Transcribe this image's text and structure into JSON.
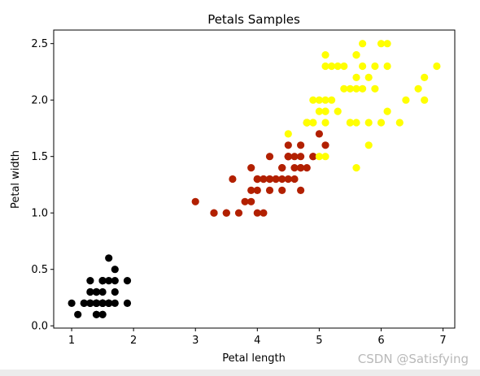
{
  "chart_data": {
    "type": "scatter",
    "title": "Petals Samples",
    "xlabel": "Petal length",
    "ylabel": "Petal width",
    "xlim": [
      0.71,
      7.19
    ],
    "ylim": [
      -0.02,
      2.62
    ],
    "xticks": [
      1,
      2,
      3,
      4,
      5,
      6,
      7
    ],
    "yticks": [
      0.0,
      0.5,
      1.0,
      1.5,
      2.0,
      2.5
    ],
    "ytick_labels": [
      "0.0",
      "0.5",
      "1.0",
      "1.5",
      "2.0",
      "2.5"
    ],
    "grid": false,
    "legend": false,
    "series": [
      {
        "color": "#000000",
        "x": [
          1.4,
          1.4,
          1.3,
          1.5,
          1.4,
          1.7,
          1.4,
          1.5,
          1.4,
          1.5,
          1.5,
          1.6,
          1.4,
          1.1,
          1.2,
          1.5,
          1.3,
          1.4,
          1.7,
          1.5,
          1.7,
          1.5,
          1.0,
          1.7,
          1.9,
          1.6,
          1.6,
          1.5,
          1.4,
          1.6,
          1.6,
          1.5,
          1.5,
          1.4,
          1.5,
          1.2,
          1.3,
          1.4,
          1.3,
          1.5,
          1.3,
          1.3,
          1.3,
          1.6,
          1.9,
          1.4,
          1.6,
          1.4,
          1.5,
          1.4
        ],
        "y": [
          0.2,
          0.2,
          0.2,
          0.2,
          0.2,
          0.4,
          0.3,
          0.2,
          0.2,
          0.1,
          0.2,
          0.2,
          0.1,
          0.1,
          0.2,
          0.4,
          0.4,
          0.3,
          0.3,
          0.3,
          0.2,
          0.4,
          0.2,
          0.5,
          0.2,
          0.2,
          0.4,
          0.2,
          0.2,
          0.2,
          0.2,
          0.4,
          0.1,
          0.2,
          0.2,
          0.2,
          0.2,
          0.1,
          0.2,
          0.2,
          0.3,
          0.3,
          0.2,
          0.6,
          0.4,
          0.3,
          0.2,
          0.2,
          0.2,
          0.2
        ]
      },
      {
        "color": "#b22000",
        "x": [
          4.7,
          4.5,
          4.9,
          4.0,
          4.6,
          4.5,
          4.7,
          3.3,
          4.6,
          3.9,
          3.5,
          4.2,
          4.0,
          4.7,
          3.6,
          4.4,
          4.5,
          4.1,
          4.5,
          3.9,
          4.8,
          4.0,
          4.9,
          4.7,
          4.3,
          4.4,
          4.8,
          5.0,
          4.5,
          3.5,
          3.8,
          3.7,
          3.9,
          5.1,
          4.5,
          4.5,
          4.7,
          4.4,
          4.1,
          4.0,
          4.4,
          4.6,
          4.0,
          3.3,
          4.2,
          4.2,
          4.2,
          4.3,
          3.0,
          4.1
        ],
        "y": [
          1.4,
          1.5,
          1.5,
          1.3,
          1.5,
          1.3,
          1.6,
          1.0,
          1.3,
          1.4,
          1.0,
          1.5,
          1.0,
          1.4,
          1.3,
          1.4,
          1.5,
          1.0,
          1.5,
          1.1,
          1.8,
          1.3,
          1.5,
          1.2,
          1.3,
          1.4,
          1.4,
          1.7,
          1.5,
          1.0,
          1.1,
          1.0,
          1.2,
          1.6,
          1.5,
          1.6,
          1.5,
          1.3,
          1.3,
          1.3,
          1.2,
          1.4,
          1.2,
          1.0,
          1.3,
          1.2,
          1.3,
          1.3,
          1.1,
          1.3
        ]
      },
      {
        "color": "#ffff00",
        "x": [
          6.0,
          5.1,
          5.9,
          5.6,
          5.8,
          6.6,
          4.5,
          6.3,
          5.8,
          6.1,
          5.1,
          5.3,
          5.5,
          5.0,
          5.1,
          5.3,
          5.5,
          6.7,
          6.9,
          5.0,
          5.7,
          4.9,
          6.7,
          4.9,
          5.7,
          6.0,
          4.8,
          4.9,
          5.6,
          5.8,
          6.1,
          6.4,
          5.6,
          5.1,
          5.6,
          6.1,
          5.6,
          5.5,
          4.8,
          5.4,
          5.6,
          5.1,
          5.1,
          5.9,
          5.7,
          5.2,
          5.0,
          5.2,
          5.4,
          5.1
        ],
        "y": [
          2.5,
          1.9,
          2.1,
          1.8,
          2.2,
          2.1,
          1.7,
          1.8,
          1.8,
          2.5,
          2.0,
          1.9,
          2.1,
          2.0,
          2.4,
          2.3,
          1.8,
          2.2,
          2.3,
          1.5,
          2.3,
          2.0,
          2.0,
          1.8,
          2.1,
          1.8,
          1.8,
          1.8,
          2.1,
          1.6,
          1.9,
          2.0,
          2.2,
          1.5,
          1.4,
          2.3,
          2.4,
          1.8,
          1.8,
          2.1,
          2.4,
          2.3,
          1.9,
          2.3,
          2.5,
          2.3,
          1.9,
          2.0,
          2.3,
          1.8
        ]
      }
    ]
  },
  "watermark": "CSDN @Satisfying"
}
